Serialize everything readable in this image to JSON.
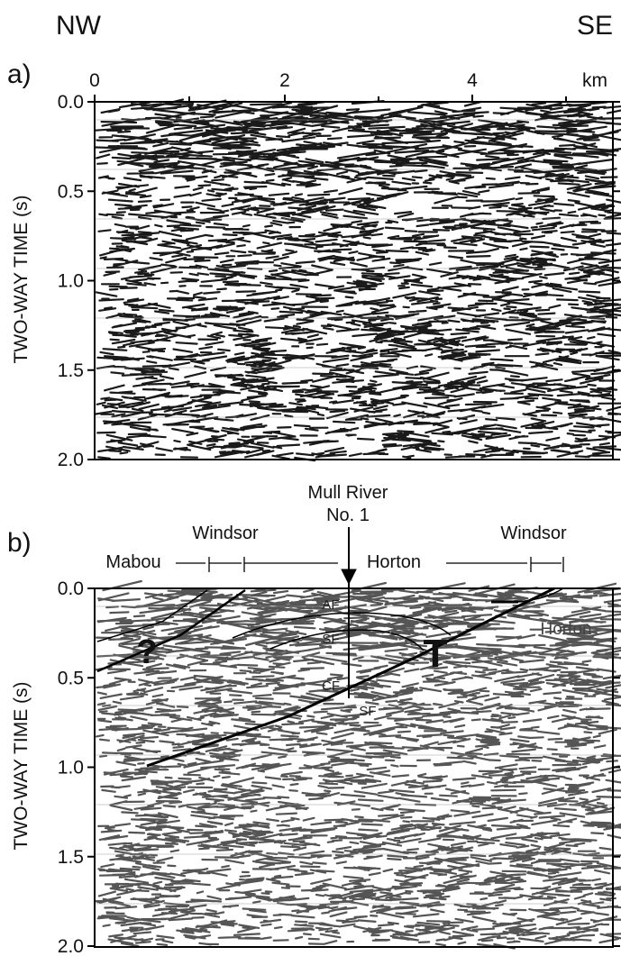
{
  "header": {
    "left": "NW",
    "right": "SE"
  },
  "panels": [
    {
      "label": "a)",
      "x_axis": {
        "ticks": [
          "0",
          "2",
          "4"
        ],
        "unit": "km"
      },
      "y_axis": {
        "title": "TWO-WAY TIME (s)",
        "ticks": [
          "0.0",
          "0.5",
          "1.0",
          "1.5",
          "2.0"
        ]
      }
    },
    {
      "label": "b)",
      "well": {
        "name": "Mull River",
        "number": "No. 1"
      },
      "units": [
        "Mabou",
        "Windsor",
        "Horton",
        "Windsor"
      ],
      "annotations": [
        "AF",
        "SF",
        "CF",
        "SF",
        "Horton",
        "T",
        "?"
      ],
      "y_axis": {
        "title": "TWO-WAY TIME (s)",
        "ticks": [
          "0.0",
          "0.5",
          "1.0",
          "1.5",
          "2.0"
        ]
      }
    }
  ]
}
